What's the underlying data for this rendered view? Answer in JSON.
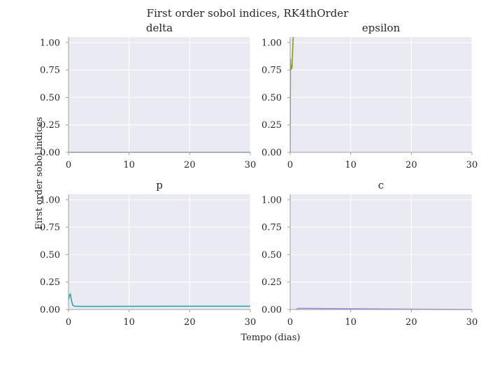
{
  "figure": {
    "title": "First order sobol indices, RK4thOrder",
    "xlabel": "Tempo (dias)",
    "ylabel": "First order sobol indices"
  },
  "chart_data": [
    {
      "type": "line",
      "title": "delta",
      "xlim": [
        0,
        30
      ],
      "ylim": [
        0,
        1.05
      ],
      "xticks": [
        "0",
        "10",
        "20",
        "30"
      ],
      "yticks": [
        "0.00",
        "0.25",
        "0.50",
        "0.75",
        "1.00"
      ],
      "grid": true,
      "color": "#5c8fb0",
      "series": [
        {
          "x": [
            0,
            30
          ],
          "y": [
            0,
            0
          ]
        }
      ]
    },
    {
      "type": "line",
      "title": "epsilon",
      "xlim": [
        0,
        30
      ],
      "ylim": [
        0,
        1.05
      ],
      "xticks": [
        "0",
        "10",
        "20",
        "30"
      ],
      "yticks": [
        "0.00",
        "0.25",
        "0.50",
        "0.75",
        "1.00"
      ],
      "grid": true,
      "color": "#8a9a2c",
      "series": [
        {
          "x": [
            0,
            0.05,
            0.1,
            0.2,
            0.3,
            0.4,
            0.5
          ],
          "y": [
            0,
            0.85,
            0.75,
            0.8,
            0.76,
            0.9,
            1.05
          ]
        }
      ]
    },
    {
      "type": "line",
      "title": "p",
      "xlim": [
        0,
        30
      ],
      "ylim": [
        0,
        1.05
      ],
      "xticks": [
        "0",
        "10",
        "20",
        "30"
      ],
      "yticks": [
        "0.00",
        "0.25",
        "0.50",
        "0.75",
        "1.00"
      ],
      "grid": true,
      "color": "#2aa8a8",
      "series": [
        {
          "x": [
            0,
            0.15,
            0.3,
            0.5,
            0.7,
            1.0,
            2,
            5,
            10,
            20,
            30
          ],
          "y": [
            0.09,
            0.13,
            0.14,
            0.08,
            0.04,
            0.03,
            0.028,
            0.028,
            0.029,
            0.03,
            0.03
          ]
        }
      ]
    },
    {
      "type": "line",
      "title": "c",
      "xlim": [
        0,
        30
      ],
      "ylim": [
        0,
        1.05
      ],
      "xticks": [
        "0",
        "10",
        "20",
        "30"
      ],
      "yticks": [
        "0.00",
        "0.25",
        "0.50",
        "0.75",
        "1.00"
      ],
      "grid": true,
      "color": "#9b8fe0",
      "series": [
        {
          "x": [
            1.0,
            1.2,
            1.5,
            3,
            10,
            20,
            25,
            30
          ],
          "y": [
            0,
            0.008,
            0.01,
            0.01,
            0.007,
            0.003,
            0.001,
            0
          ]
        }
      ]
    }
  ]
}
